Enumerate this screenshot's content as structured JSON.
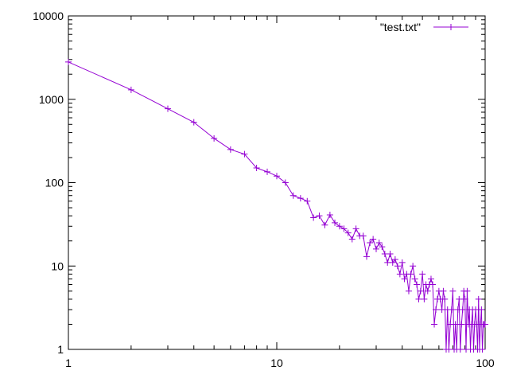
{
  "chart_data": {
    "type": "line",
    "title": "",
    "xlabel": "",
    "ylabel": "",
    "x_scale": "log",
    "y_scale": "log",
    "xlim": [
      1,
      100
    ],
    "ylim": [
      1,
      10000
    ],
    "x_ticks": [
      {
        "value": 1,
        "label": "1"
      },
      {
        "value": 10,
        "label": "10"
      },
      {
        "value": 100,
        "label": "100"
      }
    ],
    "y_ticks": [
      {
        "value": 1,
        "label": "1"
      },
      {
        "value": 10,
        "label": "10"
      },
      {
        "value": 100,
        "label": "100"
      },
      {
        "value": 1000,
        "label": "1000"
      },
      {
        "value": 10000,
        "label": "10000"
      }
    ],
    "grid": false,
    "legend_position": "top-right",
    "series": [
      {
        "name": "\"test.txt\"",
        "color": "#9400d3",
        "marker": "plus",
        "points": [
          [
            1,
            2800
          ],
          [
            2,
            1300
          ],
          [
            3,
            770
          ],
          [
            4,
            530
          ],
          [
            5,
            340
          ],
          [
            6,
            250
          ],
          [
            7,
            220
          ],
          [
            8,
            150
          ],
          [
            9,
            135
          ],
          [
            10,
            120
          ],
          [
            11,
            100
          ],
          [
            12,
            70
          ],
          [
            13,
            65
          ],
          [
            14,
            60
          ],
          [
            15,
            38
          ],
          [
            16,
            40
          ],
          [
            17,
            31
          ],
          [
            18,
            41
          ],
          [
            19,
            33
          ],
          [
            20,
            30
          ],
          [
            21,
            28
          ],
          [
            22,
            25
          ],
          [
            23,
            21
          ],
          [
            24,
            28
          ],
          [
            25,
            23
          ],
          [
            26,
            23
          ],
          [
            27,
            13
          ],
          [
            28,
            19
          ],
          [
            29,
            21
          ],
          [
            30,
            16
          ],
          [
            31,
            19
          ],
          [
            32,
            17
          ],
          [
            33,
            14
          ],
          [
            34,
            11
          ],
          [
            35,
            14
          ],
          [
            36,
            11
          ],
          [
            37,
            12
          ],
          [
            38,
            10
          ],
          [
            39,
            8
          ],
          [
            40,
            11
          ],
          [
            41,
            7
          ],
          [
            42,
            8
          ],
          [
            43,
            5
          ],
          [
            44,
            8
          ],
          [
            45,
            10
          ],
          [
            46,
            7
          ],
          [
            47,
            6
          ],
          [
            48,
            4
          ],
          [
            49,
            5
          ],
          [
            50,
            8
          ],
          [
            51,
            4
          ],
          [
            52,
            6
          ],
          [
            53,
            5
          ],
          [
            54,
            6
          ],
          [
            55,
            7
          ],
          [
            56,
            6
          ],
          [
            57,
            2
          ],
          [
            58,
            3
          ],
          [
            59,
            4
          ],
          [
            60,
            5
          ],
          [
            61,
            4
          ],
          [
            62,
            3
          ],
          [
            63,
            5
          ],
          [
            64,
            4
          ],
          [
            65,
            1
          ],
          [
            66,
            3
          ],
          [
            67,
            1
          ],
          [
            68,
            2
          ],
          [
            69,
            3
          ],
          [
            70,
            5
          ],
          [
            71,
            1
          ],
          [
            72,
            2
          ],
          [
            73,
            1
          ],
          [
            74,
            3
          ],
          [
            75,
            4
          ],
          [
            76,
            1
          ],
          [
            77,
            2
          ],
          [
            78,
            3
          ],
          [
            79,
            5
          ],
          [
            80,
            4
          ],
          [
            81,
            1
          ],
          [
            82,
            5
          ],
          [
            83,
            2
          ],
          [
            84,
            3
          ],
          [
            85,
            1
          ],
          [
            86,
            2
          ],
          [
            87,
            3
          ],
          [
            88,
            1
          ],
          [
            89,
            2
          ],
          [
            90,
            3
          ],
          [
            91,
            2
          ],
          [
            92,
            1
          ],
          [
            93,
            4
          ],
          [
            94,
            1
          ],
          [
            95,
            2
          ],
          [
            96,
            3
          ],
          [
            97,
            1
          ],
          [
            98,
            2
          ],
          [
            99,
            2
          ],
          [
            100,
            2
          ]
        ]
      }
    ]
  }
}
